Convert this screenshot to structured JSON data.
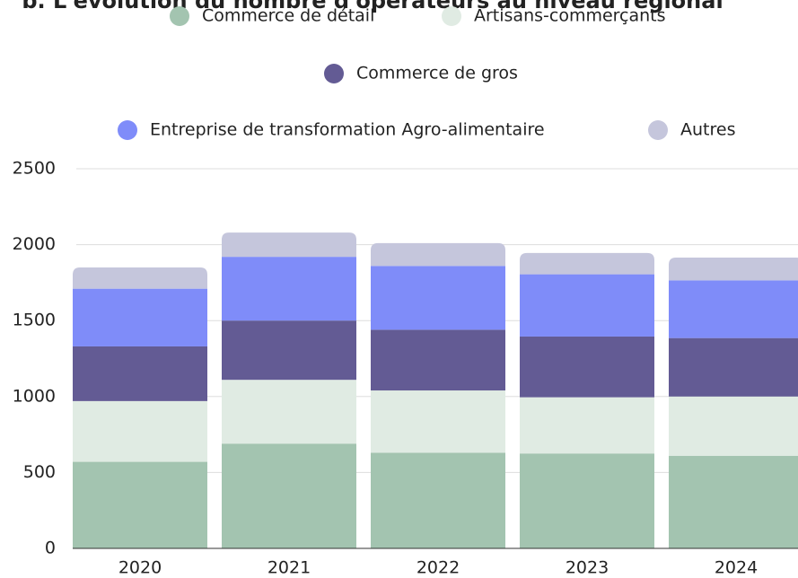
{
  "chart_data": {
    "type": "stacked_bar",
    "title": "b. L'évolution du nombre d'opérateurs au niveau régional",
    "categories": [
      "2020",
      "2021",
      "2022",
      "2023",
      "2024"
    ],
    "series": [
      {
        "name": "Commerce de détail",
        "color": "#a3c4b0",
        "values": [
          570,
          690,
          630,
          625,
          610
        ]
      },
      {
        "name": "Artisans-commerçants",
        "color": "#e0ebe3",
        "values": [
          400,
          420,
          410,
          370,
          390
        ]
      },
      {
        "name": "Commerce de gros",
        "color": "#635b94",
        "values": [
          360,
          390,
          400,
          400,
          385
        ]
      },
      {
        "name": "Entreprise de transformation Agro-alimentaire",
        "color": "#7f8cf9",
        "values": [
          380,
          420,
          420,
          410,
          380
        ]
      },
      {
        "name": "Autres",
        "color": "#c5c6dc",
        "values": [
          140,
          160,
          150,
          140,
          150
        ]
      }
    ],
    "ylim": [
      0,
      2500
    ],
    "yticks": [
      0,
      500,
      1000,
      1500,
      2000,
      2500
    ],
    "grid": true
  }
}
